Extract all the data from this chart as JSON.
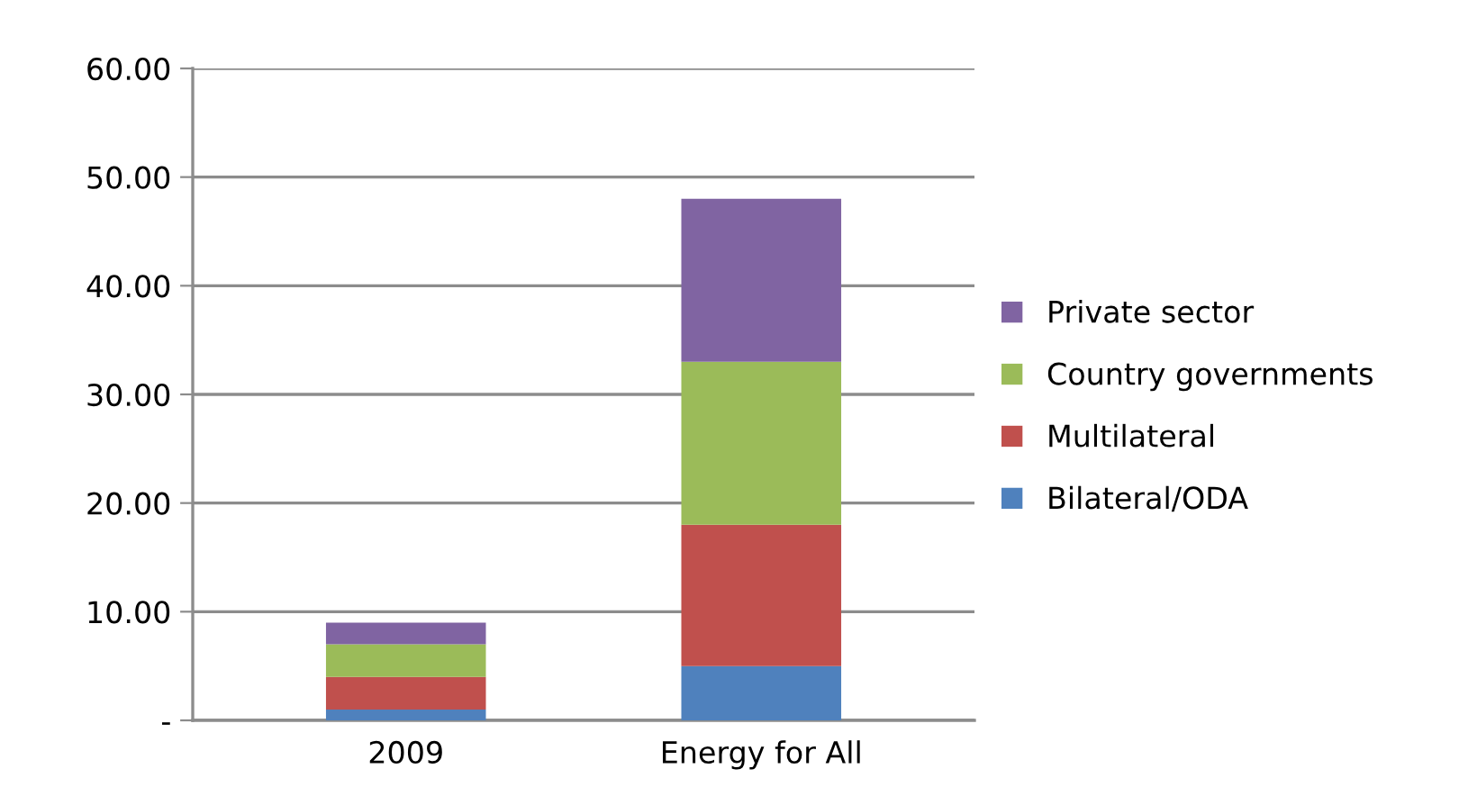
{
  "chart_data": {
    "type": "bar",
    "stacked": true,
    "categories": [
      "2009",
      "Energy for All"
    ],
    "series": [
      {
        "name": "Bilateral/ODA",
        "color": "#4f81bd",
        "values": [
          1,
          5
        ]
      },
      {
        "name": "Multilateral",
        "color": "#c0504d",
        "values": [
          3,
          13
        ]
      },
      {
        "name": "Country governments",
        "color": "#9bbb59",
        "values": [
          3,
          15
        ]
      },
      {
        "name": "Private sector",
        "color": "#8064a2",
        "values": [
          2,
          15
        ]
      }
    ],
    "ylim": [
      0,
      60
    ],
    "yticks": [
      {
        "value": 0,
        "label": "-"
      },
      {
        "value": 10,
        "label": "10.00"
      },
      {
        "value": 20,
        "label": "20.00"
      },
      {
        "value": 30,
        "label": "30.00"
      },
      {
        "value": 40,
        "label": "40.00"
      },
      {
        "value": 50,
        "label": "50.00"
      },
      {
        "value": 60,
        "label": "60.00"
      }
    ],
    "grid": "y",
    "legend": "right"
  }
}
